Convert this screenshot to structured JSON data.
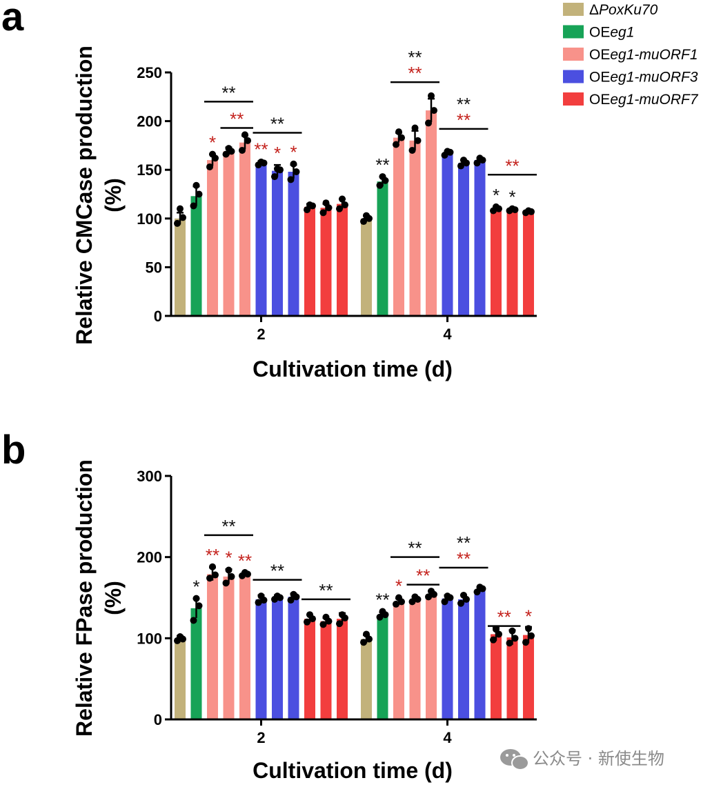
{
  "colors": {
    "dPoxKu70": "#C2B27B",
    "OEeg1": "#17A357",
    "muORF1": "#F8928A",
    "muORF3": "#4B4FE0",
    "muORF7": "#F23E3E",
    "sig_black": "#111111",
    "sig_red": "#C4221D"
  },
  "legend": {
    "entries": [
      {
        "prefix": "Δ",
        "italic": "PoxKu70",
        "color_key": "dPoxKu70"
      },
      {
        "prefix": "OE",
        "italic": "eg1",
        "color_key": "OEeg1"
      },
      {
        "prefix": "OE",
        "italic": "eg1-muORF1",
        "color_key": "muORF1"
      },
      {
        "prefix": "OE",
        "italic": "eg1-muORF3",
        "color_key": "muORF3"
      },
      {
        "prefix": "OE",
        "italic": "eg1-muORF7",
        "color_key": "muORF7"
      }
    ]
  },
  "watermark": {
    "text": "公众号 · 新使生物",
    "icon": "wechat-icon"
  },
  "chart_data": [
    {
      "panel": "a",
      "type": "bar",
      "title": "",
      "ylabel_line1": "Relative CMCase production",
      "ylabel_line2": "(%)",
      "xlabel": "Cultivation time (d)",
      "ylim": [
        0,
        250
      ],
      "yticks": [
        0,
        50,
        100,
        150,
        200,
        250
      ],
      "categories": [
        "2",
        "4"
      ],
      "bar_colors": [
        "dPoxKu70",
        "OEeg1",
        "muORF1",
        "muORF1",
        "muORF1",
        "muORF3",
        "muORF3",
        "muORF3",
        "muORF7",
        "muORF7",
        "muORF7"
      ],
      "groups": [
        {
          "category": "2",
          "values": [
            100,
            123,
            160,
            169,
            178,
            157,
            149,
            148,
            112,
            111,
            115
          ],
          "errors": [
            6,
            10,
            6,
            4,
            7,
            2,
            6,
            7,
            3,
            4,
            5
          ],
          "points": [
            [
              95,
              101,
              110
            ],
            [
              113,
              125,
              134
            ],
            [
              153,
              162,
              166
            ],
            [
              166,
              169,
              172
            ],
            [
              170,
              180,
              186
            ],
            [
              155,
              157,
              158
            ],
            [
              143,
              150,
              151
            ],
            [
              140,
              148,
              156
            ],
            [
              109,
              113,
              114
            ],
            [
              106,
              111,
              116
            ],
            [
              110,
              114,
              120
            ]
          ]
        },
        {
          "category": "4",
          "values": [
            100,
            138,
            183,
            180,
            211,
            167,
            157,
            160,
            110,
            109,
            107
          ],
          "errors": [
            3,
            5,
            5,
            10,
            12,
            2,
            3,
            2,
            2,
            1,
            1
          ],
          "points": [
            [
              97,
              100,
              103
            ],
            [
              134,
              139,
              143
            ],
            [
              176,
              183,
              189
            ],
            [
              170,
              180,
              193
            ],
            [
              198,
              211,
              226
            ],
            [
              165,
              168,
              169
            ],
            [
              154,
              157,
              160
            ],
            [
              157,
              160,
              162
            ],
            [
              108,
              110,
              112
            ],
            [
              108,
              109,
              110
            ],
            [
              106,
              107,
              108
            ]
          ]
        }
      ],
      "significance": [
        {
          "group": 0,
          "bar": 2,
          "text": "*",
          "color": "red"
        },
        {
          "group": 0,
          "bar": 5,
          "text": "**",
          "color": "red"
        },
        {
          "group": 0,
          "bar": 6,
          "text": "*",
          "color": "red"
        },
        {
          "group": 0,
          "bar": 7,
          "text": "*",
          "color": "red"
        },
        {
          "group": 1,
          "bar": 1,
          "text": "**",
          "color": "black"
        },
        {
          "group": 1,
          "bar": 8,
          "text": "*",
          "color": "black"
        },
        {
          "group": 1,
          "bar": 9,
          "text": "*",
          "color": "black"
        }
      ],
      "brackets": [
        {
          "group": 0,
          "from": 2,
          "to": 4,
          "value": 220,
          "labels": [
            {
              "text": "**",
              "color": "black"
            }
          ]
        },
        {
          "group": 0,
          "from": 3,
          "to": 4,
          "value": 193,
          "labels": [
            {
              "text": "**",
              "color": "red"
            }
          ]
        },
        {
          "group": 0,
          "from": 5,
          "to": 7,
          "value": 188,
          "labels": [
            {
              "text": "**",
              "color": "black"
            }
          ]
        },
        {
          "group": 1,
          "from": 2,
          "to": 4,
          "value": 240,
          "labels": [
            {
              "text": "**",
              "color": "black"
            },
            {
              "text": "**",
              "color": "red"
            }
          ]
        },
        {
          "group": 1,
          "from": 5,
          "to": 7,
          "value": 192,
          "labels": [
            {
              "text": "**",
              "color": "black"
            },
            {
              "text": "**",
              "color": "red"
            }
          ]
        },
        {
          "group": 1,
          "from": 8,
          "to": 10,
          "value": 145,
          "labels": [
            {
              "text": "**",
              "color": "red"
            }
          ]
        }
      ]
    },
    {
      "panel": "b",
      "type": "bar",
      "title": "",
      "ylabel_line1": "Relative FPase production",
      "ylabel_line2": "(%)",
      "xlabel": "Cultivation time (d)",
      "ylim": [
        0,
        300
      ],
      "yticks": [
        0,
        100,
        200,
        300
      ],
      "categories": [
        "2",
        "4"
      ],
      "bar_colors": [
        "dPoxKu70",
        "OEeg1",
        "muORF1",
        "muORF1",
        "muORF1",
        "muORF3",
        "muORF3",
        "muORF3",
        "muORF7",
        "muORF7",
        "muORF7"
      ],
      "groups": [
        {
          "category": "2",
          "values": [
            100,
            137,
            179,
            176,
            179,
            148,
            150,
            151,
            124,
            121,
            124
          ],
          "errors": [
            3,
            12,
            8,
            9,
            2,
            5,
            3,
            4,
            5,
            4,
            7
          ],
          "points": [
            [
              97,
              99,
              102
            ],
            [
              122,
              140,
              149
            ],
            [
              174,
              178,
              188
            ],
            [
              168,
              176,
              184
            ],
            [
              177,
              179,
              181
            ],
            [
              144,
              147,
              152
            ],
            [
              148,
              150,
              152
            ],
            [
              147,
              151,
              154
            ],
            [
              120,
              124,
              129
            ],
            [
              117,
              121,
              126
            ],
            [
              118,
              125,
              129
            ]
          ]
        },
        {
          "category": "4",
          "values": [
            99,
            129,
            145,
            148,
            154,
            149,
            148,
            160,
            105,
            101,
            104
          ],
          "errors": [
            5,
            3,
            4,
            3,
            4,
            4,
            5,
            3,
            8,
            9,
            10
          ],
          "points": [
            [
              95,
              99,
              105
            ],
            [
              126,
              129,
              133
            ],
            [
              142,
              145,
              150
            ],
            [
              145,
              148,
              151
            ],
            [
              151,
              154,
              158
            ],
            [
              145,
              150,
              152
            ],
            [
              143,
              148,
              153
            ],
            [
              157,
              161,
              163
            ],
            [
              98,
              105,
              111
            ],
            [
              94,
              100,
              109
            ],
            [
              95,
              103,
              112
            ]
          ]
        }
      ],
      "significance": [
        {
          "group": 0,
          "bar": 1,
          "text": "*",
          "color": "black"
        },
        {
          "group": 0,
          "bar": 2,
          "text": "**",
          "color": "red"
        },
        {
          "group": 0,
          "bar": 3,
          "text": "*",
          "color": "red"
        },
        {
          "group": 0,
          "bar": 4,
          "text": "**",
          "color": "red"
        },
        {
          "group": 1,
          "bar": 1,
          "text": "**",
          "color": "black"
        },
        {
          "group": 1,
          "bar": 2,
          "text": "*",
          "color": "red"
        }
      ],
      "brackets": [
        {
          "group": 0,
          "from": 2,
          "to": 4,
          "value": 227,
          "labels": [
            {
              "text": "**",
              "color": "black"
            }
          ]
        },
        {
          "group": 0,
          "from": 5,
          "to": 7,
          "value": 172,
          "labels": [
            {
              "text": "**",
              "color": "black"
            }
          ]
        },
        {
          "group": 0,
          "from": 8,
          "to": 10,
          "value": 148,
          "labels": [
            {
              "text": "**",
              "color": "black"
            }
          ]
        },
        {
          "group": 1,
          "from": 2,
          "to": 4,
          "value": 200,
          "labels": [
            {
              "text": "**",
              "color": "black"
            }
          ]
        },
        {
          "group": 1,
          "from": 3,
          "to": 4,
          "value": 166,
          "labels": [
            {
              "text": "**",
              "color": "red"
            }
          ]
        },
        {
          "group": 1,
          "from": 5,
          "to": 7,
          "value": 187,
          "labels": [
            {
              "text": "**",
              "color": "black"
            },
            {
              "text": "**",
              "color": "red"
            }
          ]
        },
        {
          "group": 1,
          "from": 8,
          "to": 9,
          "value": 115,
          "labels": [
            {
              "text": "**",
              "color": "red"
            }
          ]
        },
        {
          "group": 1,
          "from": 10,
          "to": 10,
          "value": 116,
          "labels": [
            {
              "text": "*",
              "color": "red"
            }
          ],
          "no_line": true
        }
      ]
    }
  ]
}
